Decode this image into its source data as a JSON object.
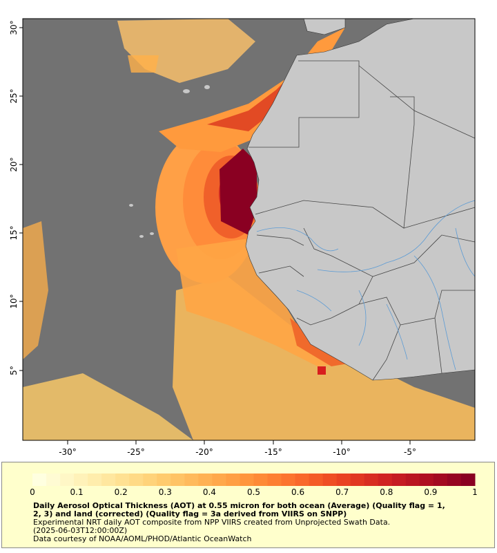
{
  "map": {
    "colors": {
      "ocean_nodata": "#727272",
      "land": "#c8c8c8",
      "border": "#444444",
      "river": "#5b9bd5",
      "frame": "#000000"
    },
    "lat_labels": [
      "30°",
      "25°",
      "20°",
      "15°",
      "10°",
      "5°"
    ],
    "lon_labels": [
      "-30°",
      "-25°",
      "-20°",
      "-15°",
      "-10°",
      "-5°"
    ]
  },
  "colorbar": {
    "ticks": [
      "0",
      "0.1",
      "0.2",
      "0.3",
      "0.4",
      "0.5",
      "0.6",
      "0.7",
      "0.8",
      "0.9",
      "1"
    ],
    "range": [
      0,
      1
    ],
    "colors": [
      "#ffffe0",
      "#fff2b8",
      "#ffe08f",
      "#ffc96b",
      "#ffae4f",
      "#ff9039",
      "#fb6d2c",
      "#eb4522",
      "#d22422",
      "#b01021",
      "#8a0022"
    ]
  },
  "caption": {
    "title_line1": "Daily Aerosol Optical Thickness (AOT) at 0.55 micron for both ocean (Average) (Quality flag = 1,",
    "title_line2": "2, 3) and land (corrected) (Quality flag = 3a derived from VIIRS on SNPP)",
    "line3": "Experimental NRT daily AOT composite from NPP VIIRS created from Unprojected Swath Data.",
    "line4": "(2025-06-03T12:00:00Z)",
    "line5": "Data courtesy of NOAA/AOML/PHOD/Atlantic OceanWatch"
  }
}
